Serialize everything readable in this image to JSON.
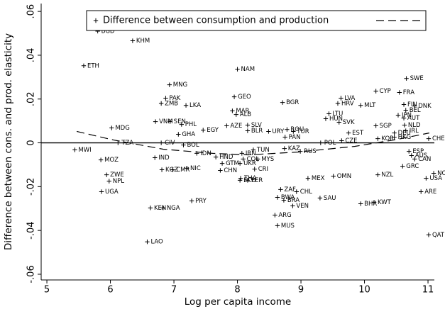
{
  "chart_data": {
    "type": "scatter",
    "xlabel": "Log per capita income",
    "ylabel": "Difference between cons. and prod. elasticity",
    "xlim": [
      4.91,
      11.1
    ],
    "ylim": [
      -0.0626,
      0.0636
    ],
    "xticks": [
      5,
      6,
      7,
      8,
      9,
      10,
      11
    ],
    "yticks": [
      {
        "value": -0.06,
        "label": "-.06"
      },
      {
        "value": -0.04,
        "label": "-.04"
      },
      {
        "value": -0.02,
        "label": "-.02"
      },
      0,
      {
        "value": 0.02,
        "label": ".02"
      },
      {
        "value": 0.04,
        "label": ".04"
      },
      {
        "value": 0.06,
        "label": ".06"
      }
    ],
    "reference_line": 0,
    "legend": "top",
    "series": [
      {
        "name": "Difference between consumption and production",
        "color": "#000000",
        "labels": [
          "BGD",
          "KHM",
          "ETH",
          "NAM",
          "MNG",
          "SWE",
          "PAK",
          "ZMB",
          "GEO",
          "BGR",
          "LVA",
          "CYP",
          "FRA",
          "HRV",
          "MLT",
          "LKA",
          "FIN",
          "DNK",
          "BEL",
          "MAR",
          "ALB",
          "LTU",
          "HUN",
          "JPN",
          "AUT",
          "VNM",
          "SEN",
          "SVK",
          "SGP",
          "NLD",
          "PHL",
          "AZE",
          "SLV",
          "EGY",
          "MDG",
          "BLR",
          "URY",
          "ROU",
          "TUR",
          "EST",
          "IRL",
          "DEU",
          "GHA",
          "PAN",
          "HKG",
          "KOR",
          "CHE",
          "CZE",
          "POL",
          "CIV",
          "BOL",
          "TZA",
          "MWI",
          "MOZ",
          "KAZ",
          "RUS",
          "TUN",
          "IRN",
          "UKR",
          "COL",
          "MYS",
          "IDN",
          "HND",
          "GTM",
          "IND",
          "ESP",
          "AUS",
          "CAN",
          "GRC",
          "ZWE",
          "NPL",
          "UGA",
          "KGZ",
          "CMR",
          "NIC",
          "CHN",
          "CRI",
          "THA",
          "ECU",
          "PER",
          "MEX",
          "OMN",
          "NZL",
          "USA",
          "NOR",
          "ZAF",
          "CHL",
          "BWA",
          "BRA",
          "SAU",
          "VEN",
          "BHR",
          "KWT",
          "ARE",
          "PRY",
          "KEN",
          "NGA",
          "ARG",
          "MUS",
          "LAO",
          "QAT"
        ],
        "x": [
          5.8,
          6.35,
          5.58,
          8.0,
          6.93,
          10.66,
          6.87,
          6.8,
          7.95,
          8.71,
          9.63,
          10.18,
          10.55,
          9.58,
          9.94,
          7.19,
          10.62,
          10.79,
          10.65,
          7.92,
          7.98,
          9.44,
          9.39,
          10.53,
          10.62,
          6.71,
          6.94,
          9.6,
          10.18,
          10.63,
          7.12,
          7.83,
          8.16,
          7.46,
          6.02,
          8.16,
          8.49,
          8.78,
          8.88,
          9.75,
          10.65,
          10.47,
          7.07,
          8.75,
          10.47,
          10.21,
          11.01,
          9.64,
          9.31,
          6.8,
          7.15,
          6.12,
          5.44,
          5.85,
          8.74,
          8.99,
          8.25,
          8.07,
          8.04,
          8.09,
          8.32,
          7.36,
          7.66,
          7.76,
          6.7,
          10.7,
          10.74,
          10.79,
          10.6,
          5.94,
          5.98,
          5.86,
          6.81,
          6.98,
          7.2,
          7.73,
          8.27,
          8.05,
          8.04,
          8.16,
          9.11,
          9.51,
          10.21,
          10.97,
          11.09,
          8.68,
          8.93,
          8.63,
          8.73,
          9.3,
          8.87,
          9.94,
          10.15,
          10.89,
          7.28,
          6.63,
          6.83,
          8.59,
          8.63,
          6.58,
          11.01
        ],
        "values": [
          0.051,
          0.0466,
          0.0352,
          0.0336,
          0.0265,
          0.0294,
          0.0204,
          0.018,
          0.021,
          0.0184,
          0.0204,
          0.0236,
          0.023,
          0.018,
          0.0171,
          0.0171,
          0.0175,
          0.0168,
          0.0149,
          0.0146,
          0.0129,
          0.0133,
          0.011,
          0.0126,
          0.0113,
          0.0097,
          0.0097,
          0.0094,
          0.0078,
          0.0081,
          0.0084,
          0.0078,
          0.0081,
          0.0058,
          0.0068,
          0.0055,
          0.0052,
          0.0061,
          0.0052,
          0.0045,
          0.0055,
          0.0045,
          0.0039,
          0.0026,
          0.0026,
          0.0019,
          0.0019,
          0.001,
          0.0,
          0.0,
          -0.001,
          0.0,
          -0.0032,
          -0.0078,
          -0.0026,
          -0.0039,
          -0.0032,
          -0.0048,
          -0.0094,
          -0.0074,
          -0.0074,
          -0.0048,
          -0.0065,
          -0.0094,
          -0.0068,
          -0.0039,
          -0.0058,
          -0.0074,
          -0.0107,
          -0.0146,
          -0.0175,
          -0.0223,
          -0.0123,
          -0.0123,
          -0.0116,
          -0.0126,
          -0.012,
          -0.0162,
          -0.0171,
          -0.0171,
          -0.0162,
          -0.0152,
          -0.0146,
          -0.0162,
          -0.0139,
          -0.0213,
          -0.0223,
          -0.0249,
          -0.0262,
          -0.0252,
          -0.0288,
          -0.0278,
          -0.0272,
          -0.0223,
          -0.0265,
          -0.0297,
          -0.0297,
          -0.033,
          -0.0378,
          -0.0452,
          -0.042
        ]
      },
      {
        "type": "line",
        "style": "dashed",
        "color": "#000000",
        "x": [
          5.47,
          6.05,
          6.83,
          7.61,
          8.17,
          8.96,
          9.85,
          10.52,
          11.02
        ],
        "values": [
          0.0052,
          0.0013,
          -0.0029,
          -0.0048,
          -0.0055,
          -0.0042,
          -0.0016,
          0.0016,
          0.0045
        ]
      }
    ]
  }
}
